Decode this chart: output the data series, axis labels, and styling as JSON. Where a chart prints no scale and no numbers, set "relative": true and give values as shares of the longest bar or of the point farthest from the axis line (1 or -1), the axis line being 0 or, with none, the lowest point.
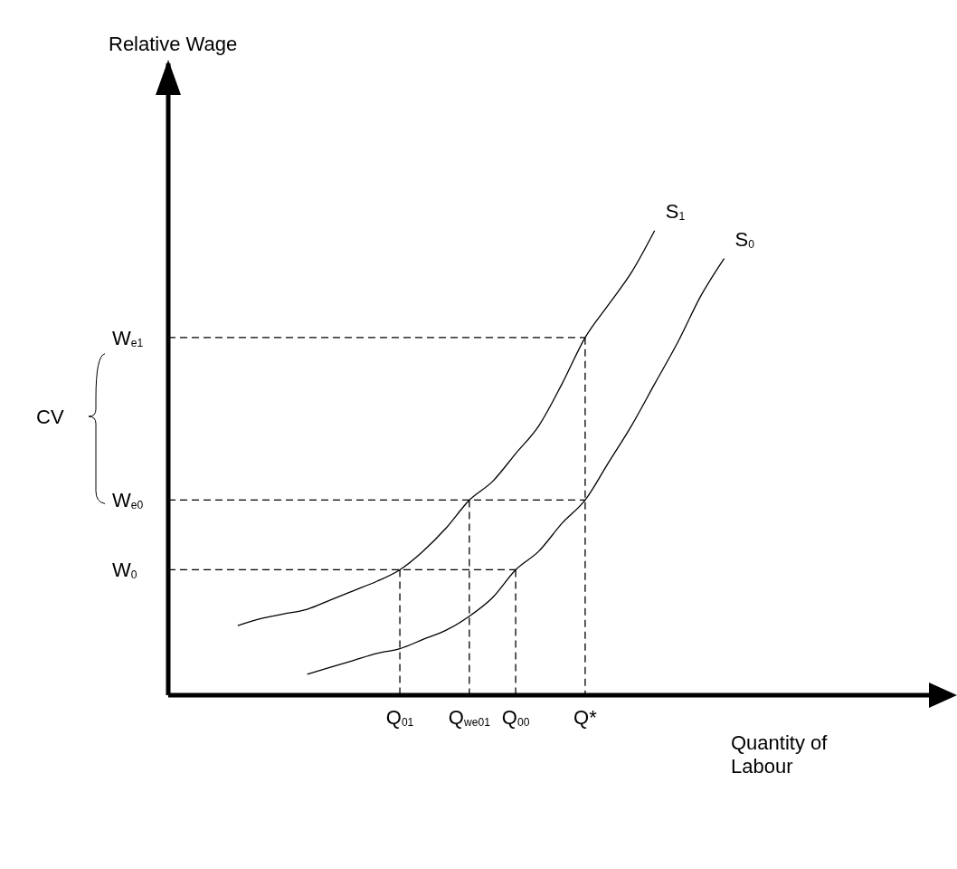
{
  "chart_data": {
    "type": "line",
    "relative": true,
    "xlabel": "Quantity of Labour",
    "categories": [
      null,
      null,
      null,
      null,
      null,
      null,
      null,
      null,
      null,
      null,
      "Q$_{01}$",
      null,
      null,
      "Q$_{we01}$",
      null,
      "Q$_{00}$",
      null,
      null,
      "Q*",
      null,
      null,
      null,
      null,
      null,
      null,
      null,
      null,
      null,
      null,
      null,
      null,
      null,
      null,
      null
    ],
    "annotations": [
      "CV",
      "W$_{0}$",
      "W$_{e0}$",
      "W$_{e1}$",
      "Relative Wage"
    ],
    "series": [
      {
        "name": "S$_{1}$",
        "color": "#000000",
        "line_style": "solid",
        "values": [
          null,
          null,
          null,
          0.15,
          0.165,
          0.175,
          0.185,
          0.205,
          0.225,
          0.245,
          0.27,
          0.31,
          0.36,
          0.42,
          0.46,
          0.52,
          0.58,
          0.67,
          0.77,
          0.84,
          0.91,
          1,
          null,
          null,
          null,
          null,
          null,
          null,
          null,
          null,
          null,
          null,
          null,
          null
        ]
      },
      {
        "name": "S$_{0}$",
        "color": "#000000",
        "line_style": "solid",
        "values": [
          null,
          null,
          null,
          null,
          null,
          null,
          0.045,
          0.06,
          0.075,
          0.09,
          0.1,
          0.12,
          0.14,
          0.17,
          0.21,
          0.27,
          0.31,
          0.37,
          0.42,
          0.5,
          0.58,
          0.67,
          0.76,
          0.86,
          0.94,
          null,
          null,
          null,
          null,
          null,
          null,
          null,
          null,
          null
        ]
      },
      {
        "color": "#000000",
        "line_style": "dashed",
        "values": [
          0.27,
          0.27,
          0.27,
          0.27,
          0.27,
          0.27,
          0.27,
          0.27,
          0.27,
          0.27,
          0.27,
          0.27,
          0.27,
          0.27,
          0.27,
          0.27,
          null,
          null,
          null,
          null,
          null,
          null,
          null,
          null,
          null,
          null,
          null,
          null,
          null,
          null,
          null,
          null,
          null,
          null
        ]
      },
      {
        "color": "#000000",
        "line_style": "dashed",
        "values": [
          0.42,
          0.42,
          0.42,
          0.42,
          0.42,
          0.42,
          0.42,
          0.42,
          0.42,
          0.42,
          0.42,
          0.42,
          0.42,
          0.42,
          0.42,
          0.42,
          0.42,
          0.42,
          0.42,
          null,
          null,
          null,
          null,
          null,
          null,
          null,
          null,
          null,
          null,
          null,
          null,
          null,
          null,
          null
        ]
      },
      {
        "color": "#000000",
        "line_style": "dashed",
        "values": [
          0.77,
          0.77,
          0.77,
          0.77,
          0.77,
          0.77,
          0.77,
          0.77,
          0.77,
          0.77,
          0.77,
          0.77,
          0.77,
          0.77,
          0.77,
          0.77,
          0.77,
          0.77,
          0.77,
          null,
          null,
          null,
          null,
          null,
          null,
          null,
          null,
          null,
          null,
          null,
          null,
          null,
          null,
          null
        ]
      },
      {
        "color": "#000000",
        "line_style": "dashed",
        "x": [
          "Q$_{01}$",
          "Q$_{01}$"
        ],
        "values": [
          0.27,
          0
        ]
      },
      {
        "color": "#000000",
        "line_style": "dashed",
        "x": [
          "Q$_{we01}$",
          "Q$_{we01}$"
        ],
        "values": [
          0.42,
          0
        ]
      },
      {
        "color": "#000000",
        "line_style": "dashed",
        "x": [
          "Q$_{00}$",
          "Q$_{00}$"
        ],
        "values": [
          0.27,
          0
        ]
      },
      {
        "color": "#000000",
        "line_style": "dashed",
        "x": [
          "Q*",
          "Q*"
        ],
        "values": [
          0.77,
          0
        ]
      }
    ]
  }
}
